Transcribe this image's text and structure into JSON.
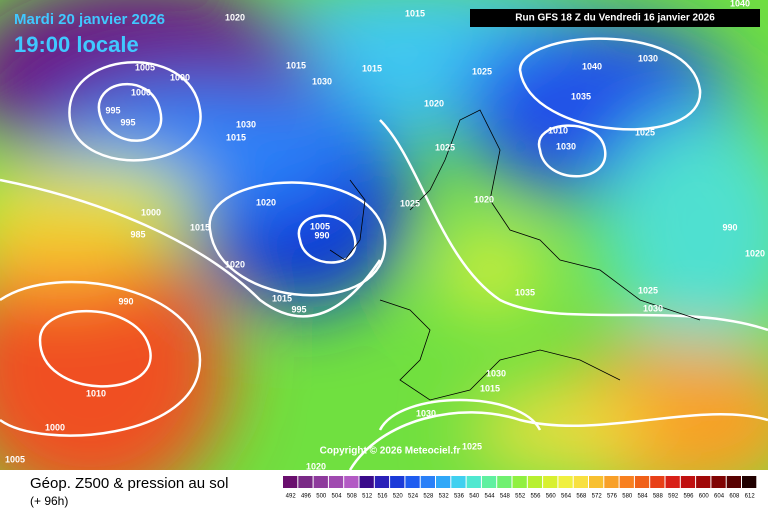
{
  "header": {
    "date": "Mardi 20 janvier 2026",
    "time": "19:00 locale",
    "run": "Run GFS 18 Z du Vendredi 16 janvier 2026"
  },
  "copyright": "Copyright © 2026 Meteociel.fr",
  "footer": {
    "title": "Géop. Z500 & pression au sol",
    "lead": "(+ 96h)"
  },
  "isobar_labels": [
    "1020",
    "1015",
    "1040",
    "1005",
    "1000",
    "1000",
    "995",
    "995",
    "1015",
    "1030",
    "1015",
    "1025",
    "1040",
    "1030",
    "1035",
    "1030",
    "1015",
    "1010",
    "1025",
    "1025",
    "1030",
    "1020",
    "1025",
    "1020",
    "1000",
    "1015",
    "1005",
    "990",
    "985",
    "1020",
    "990",
    "1020",
    "1015",
    "995",
    "990",
    "1025",
    "1030",
    "1035",
    "1030",
    "1015",
    "1010",
    "1030",
    "1000",
    "1025",
    "1005",
    "1020",
    "1020"
  ],
  "colorbar": {
    "labels": [
      "492",
      "496",
      "500",
      "504",
      "508",
      "512",
      "516",
      "520",
      "524",
      "528",
      "532",
      "536",
      "540",
      "544",
      "548",
      "552",
      "556",
      "560",
      "564",
      "568",
      "572",
      "576",
      "580",
      "584",
      "588",
      "592",
      "596",
      "600",
      "604",
      "608",
      "612"
    ],
    "colors": [
      "#6a0f6e",
      "#7a2a86",
      "#8e3a9c",
      "#a04ab0",
      "#b35ac4",
      "#3a0a8a",
      "#2a20b8",
      "#1b3ad8",
      "#1f5cf0",
      "#2a80f8",
      "#30a8f8",
      "#40d0f0",
      "#50e8d0",
      "#60f0a0",
      "#70f070",
      "#90f040",
      "#b8f030",
      "#d8f030",
      "#f0f040",
      "#f8e040",
      "#f8c030",
      "#f8a028",
      "#f88020",
      "#f06018",
      "#e84018",
      "#d82018",
      "#c01010",
      "#a00808",
      "#800404",
      "#580202",
      "#200000"
    ]
  }
}
